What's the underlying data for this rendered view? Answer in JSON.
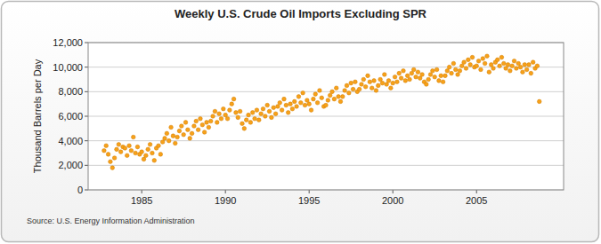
{
  "chart_data": {
    "type": "scatter",
    "title": "Weekly U.S. Crude Oil Imports Excluding SPR",
    "y_label": "Thousand Barrels per Day",
    "source": "Source: U.S. Energy Information Administration",
    "color": "#f7a11a",
    "marker": "circle",
    "grid": true,
    "xlim": [
      1981.8,
      2010.2
    ],
    "xticks": [
      1985,
      1990,
      1995,
      2000,
      2005
    ],
    "ylim": [
      0,
      12000
    ],
    "yticks": [
      0,
      {
        "value": 2000,
        "label": "2,000"
      },
      {
        "value": 4000,
        "label": "4,000"
      },
      {
        "value": 6000,
        "label": "6,000"
      },
      {
        "value": 8000,
        "label": "8,000"
      },
      {
        "value": 10000,
        "label": "10,000"
      },
      {
        "value": 12000,
        "label": "12,000"
      }
    ],
    "x": [
      1982.75,
      1982.875,
      1983,
      1983.125,
      1983.25,
      1983.375,
      1983.5,
      1983.625,
      1983.75,
      1983.875,
      1984,
      1984.125,
      1984.25,
      1984.375,
      1984.5,
      1984.625,
      1984.75,
      1984.875,
      1985,
      1985.125,
      1985.25,
      1985.375,
      1985.5,
      1985.625,
      1985.75,
      1985.875,
      1986,
      1986.125,
      1986.25,
      1986.375,
      1986.5,
      1986.625,
      1986.75,
      1986.875,
      1987,
      1987.125,
      1987.25,
      1987.375,
      1987.5,
      1987.625,
      1987.75,
      1987.875,
      1988,
      1988.125,
      1988.25,
      1988.375,
      1988.5,
      1988.625,
      1988.75,
      1988.875,
      1989,
      1989.125,
      1989.25,
      1989.375,
      1989.5,
      1989.625,
      1989.75,
      1989.875,
      1990,
      1990.125,
      1990.25,
      1990.375,
      1990.5,
      1990.625,
      1990.75,
      1990.875,
      1991,
      1991.125,
      1991.25,
      1991.375,
      1991.5,
      1991.625,
      1991.75,
      1991.875,
      1992,
      1992.125,
      1992.25,
      1992.375,
      1992.5,
      1992.625,
      1992.75,
      1992.875,
      1993,
      1993.125,
      1993.25,
      1993.375,
      1993.5,
      1993.625,
      1993.75,
      1993.875,
      1994,
      1994.125,
      1994.25,
      1994.375,
      1994.5,
      1994.625,
      1994.75,
      1994.875,
      1995,
      1995.125,
      1995.25,
      1995.375,
      1995.5,
      1995.625,
      1995.75,
      1995.875,
      1996,
      1996.125,
      1996.25,
      1996.375,
      1996.5,
      1996.625,
      1996.75,
      1996.875,
      1997,
      1997.125,
      1997.25,
      1997.375,
      1997.5,
      1997.625,
      1997.75,
      1997.875,
      1998,
      1998.125,
      1998.25,
      1998.375,
      1998.5,
      1998.625,
      1998.75,
      1998.875,
      1999,
      1999.125,
      1999.25,
      1999.375,
      1999.5,
      1999.625,
      1999.75,
      1999.875,
      2000,
      2000.125,
      2000.25,
      2000.375,
      2000.5,
      2000.625,
      2000.75,
      2000.875,
      2001,
      2001.125,
      2001.25,
      2001.375,
      2001.5,
      2001.625,
      2001.75,
      2001.875,
      2002,
      2002.125,
      2002.25,
      2002.375,
      2002.5,
      2002.625,
      2002.75,
      2002.875,
      2003,
      2003.125,
      2003.25,
      2003.375,
      2003.5,
      2003.625,
      2003.75,
      2003.875,
      2004,
      2004.125,
      2004.25,
      2004.375,
      2004.5,
      2004.625,
      2004.75,
      2004.875,
      2005,
      2005.125,
      2005.25,
      2005.375,
      2005.5,
      2005.625,
      2005.75,
      2005.875,
      2006,
      2006.125,
      2006.25,
      2006.375,
      2006.5,
      2006.625,
      2006.75,
      2006.875,
      2007,
      2007.125,
      2007.25,
      2007.375,
      2007.5,
      2007.625,
      2007.75,
      2007.875,
      2008,
      2008.125,
      2008.25,
      2008.375,
      2008.5,
      2008.625,
      2008.75
    ],
    "values": [
      3200,
      3600,
      2900,
      2300,
      1800,
      2600,
      3300,
      3700,
      3100,
      3500,
      3400,
      2800,
      3600,
      3200,
      4300,
      3000,
      3500,
      2900,
      3100,
      2500,
      2800,
      3300,
      3700,
      3000,
      2400,
      3400,
      3600,
      2900,
      3900,
      4200,
      4600,
      4000,
      5100,
      4400,
      3800,
      4300,
      4800,
      5200,
      4500,
      5500,
      4900,
      4200,
      4600,
      5200,
      5600,
      4900,
      5800,
      5300,
      4700,
      5500,
      5100,
      5600,
      6000,
      6400,
      5500,
      6200,
      5800,
      6600,
      6100,
      5800,
      6500,
      7000,
      7400,
      6300,
      5900,
      6400,
      5400,
      5000,
      5700,
      6100,
      5500,
      6300,
      5800,
      6500,
      5700,
      6200,
      6600,
      6000,
      6900,
      6400,
      5900,
      6700,
      6200,
      6800,
      7100,
      6500,
      7400,
      6900,
      6300,
      7000,
      6600,
      7200,
      6800,
      7600,
      7100,
      7900,
      6900,
      7300,
      7000,
      6500,
      7400,
      7800,
      7100,
      8100,
      7500,
      6800,
      6900,
      7300,
      7700,
      8000,
      7400,
      8300,
      7600,
      7200,
      7600,
      8100,
      8500,
      7900,
      8700,
      8200,
      8800,
      8000,
      8200,
      8600,
      9000,
      8400,
      9300,
      8800,
      8300,
      8900,
      8100,
      8500,
      9000,
      8700,
      9400,
      8600,
      8900,
      8300,
      8700,
      9200,
      8800,
      9500,
      9100,
      9700,
      8900,
      9300,
      9000,
      9500,
      9800,
      9200,
      9600,
      9100,
      9400,
      8800,
      8600,
      9000,
      9400,
      9700,
      9200,
      9800,
      8900,
      9300,
      8800,
      9300,
      9700,
      10000,
      9500,
      10300,
      9800,
      9400,
      9700,
      10100,
      10400,
      9900,
      10600,
      10200,
      10800,
      10000,
      10100,
      10500,
      9800,
      10700,
      10300,
      10900,
      9600,
      10200,
      9900,
      10400,
      10600,
      10100,
      10800,
      10300,
      9900,
      10200,
      9700,
      10100,
      10500,
      9900,
      10300,
      10000,
      9600,
      10200,
      9800,
      10200,
      9500,
      10400,
      9900,
      10100,
      7200
    ]
  }
}
